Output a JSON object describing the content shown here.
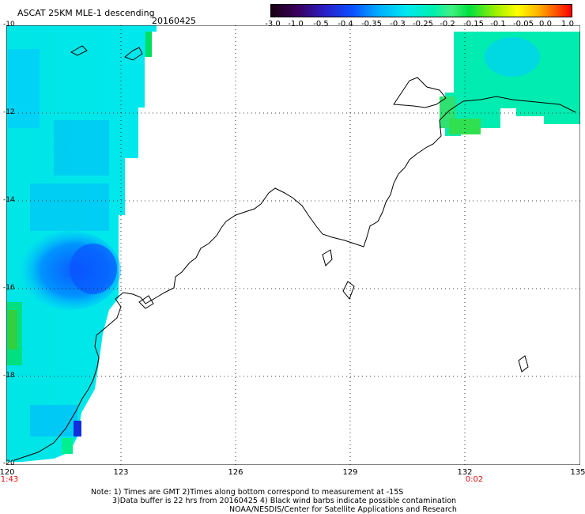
{
  "title": "ASCAT 25KM MLE-1 descending",
  "date": "20160425",
  "colorbar": {
    "ticks": [
      "-3.0",
      "-1.0",
      "-0.5",
      "-0.4",
      "-0.35",
      "-0.3",
      "-0.25",
      "-0.2",
      "-0.15",
      "-0.1",
      "-0.05",
      "0.0",
      "1.0"
    ]
  },
  "axes": {
    "lat_labels": [
      "-10",
      "-12",
      "-14",
      "-16",
      "-18",
      "-20"
    ],
    "lon_labels": [
      "120",
      "123",
      "126",
      "129",
      "132",
      "135"
    ],
    "time_labels": [
      "1:43",
      "0:02"
    ]
  },
  "colors": {
    "time_label": "#e01010",
    "coastline": "#000000",
    "grid": "#000000"
  },
  "notes": {
    "line1": "Note: 1) Times are GMT 2)Times along bottom correspond to measurement at -15S",
    "line2": "3)Data buffer is 22 hrs from 20160425 4) Black wind barbs indicate possible contamination",
    "line3": "NOAA/NESDIS/Center for Satellite Applications and Research"
  }
}
